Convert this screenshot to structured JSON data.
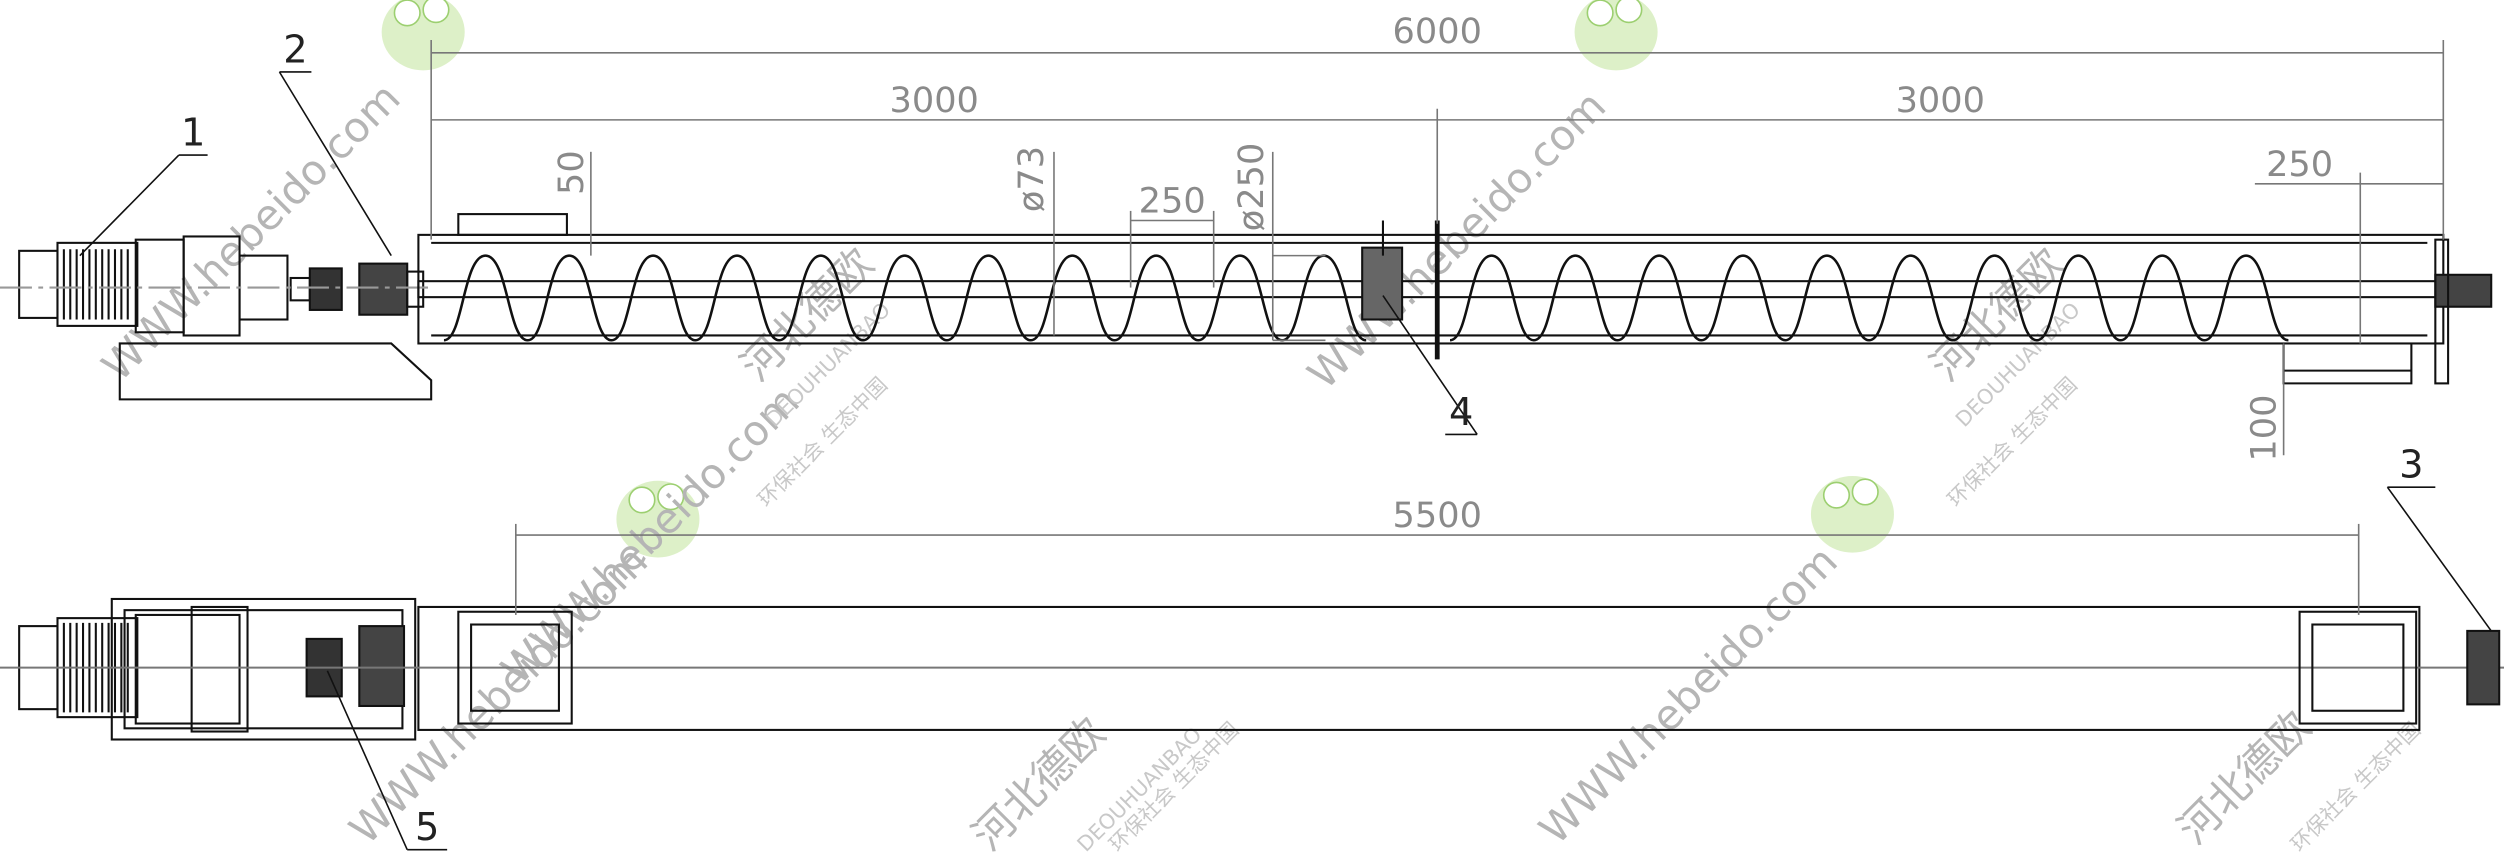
{
  "dimensions": {
    "overall_length": "6000",
    "half_left": "3000",
    "half_right": "3000",
    "outlet_offset": "250",
    "pitch": "250",
    "inlet_height": "50",
    "shaft_diameter": "ø73",
    "screw_diameter": "ø250",
    "outlet_height": "100",
    "plan_length": "5500"
  },
  "part_labels": [
    "1",
    "2",
    "3",
    "4",
    "5"
  ],
  "watermarks": {
    "site": "WWW.hebeido.com",
    "brand": "河北德欧",
    "pinyin": "DEOUHUANBAO",
    "slogan": "环保社会  生态中国"
  }
}
